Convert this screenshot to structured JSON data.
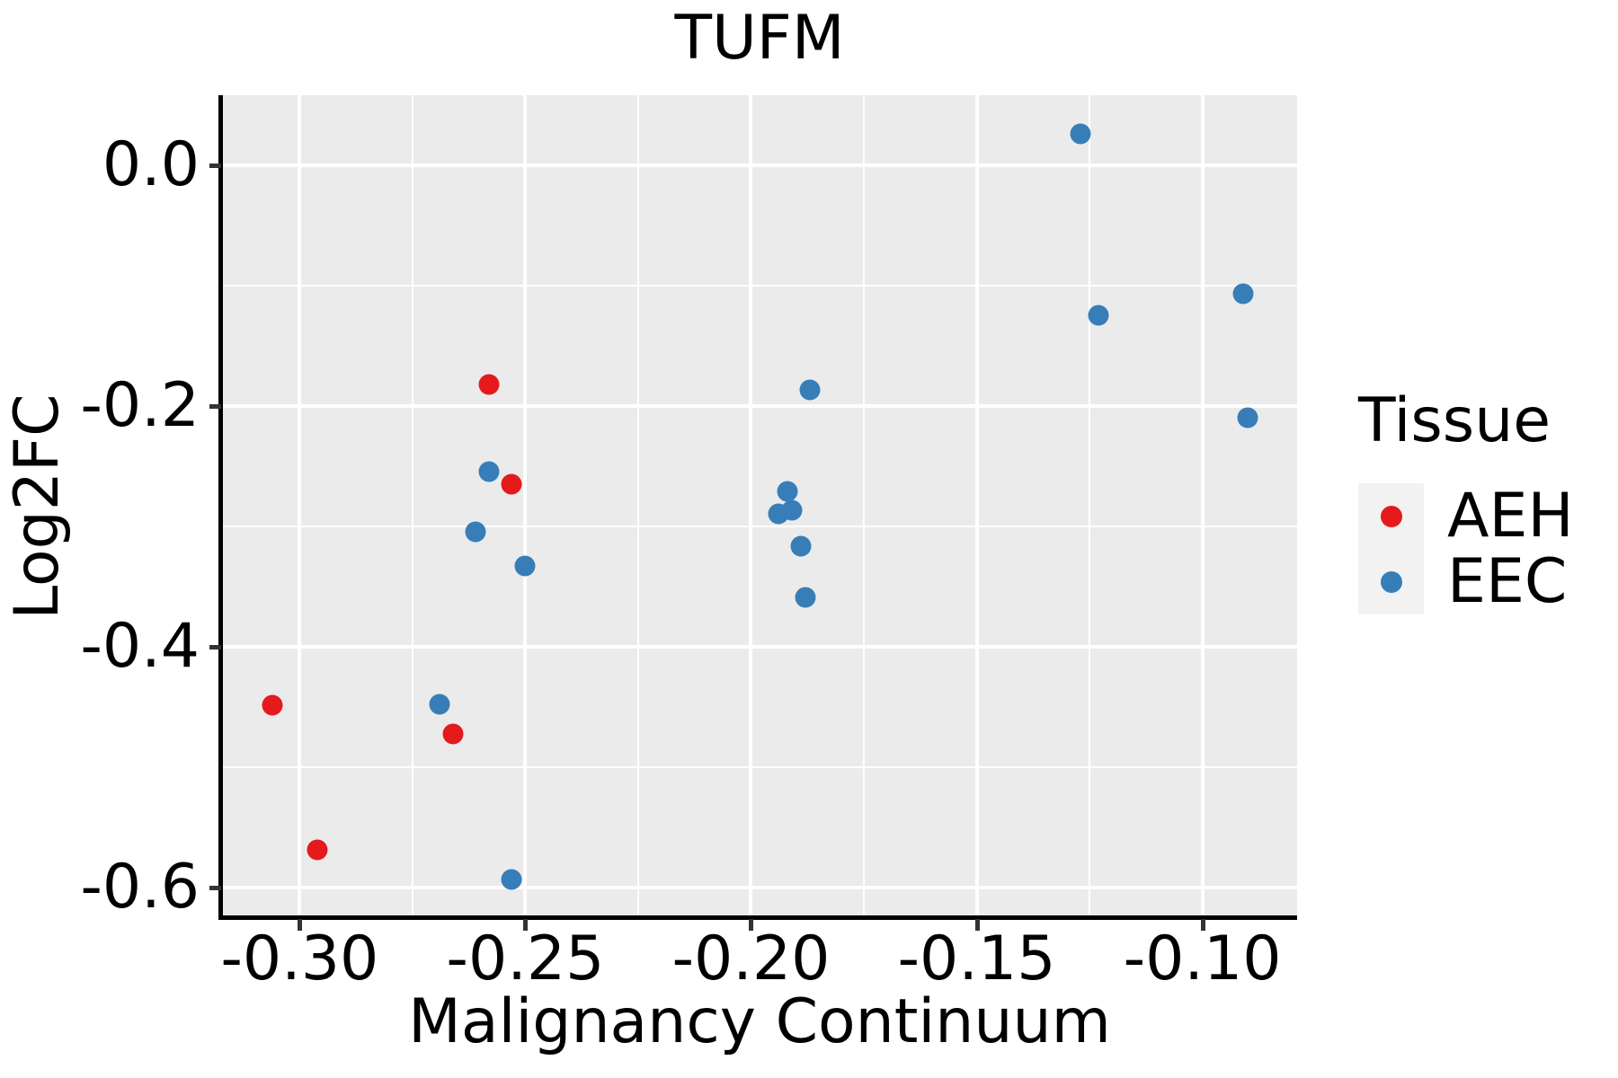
{
  "title": "TUFM",
  "chart_data": {
    "type": "scatter",
    "title": "TUFM",
    "xlabel": "Malignancy Continuum",
    "ylabel": "Log2FC",
    "xlim": [
      -0.317,
      -0.079
    ],
    "ylim": [
      -0.625,
      0.058
    ],
    "grid": true,
    "legend_position": "right",
    "x_ticks": [
      -0.3,
      -0.25,
      -0.2,
      -0.15,
      -0.1
    ],
    "x_tick_labels": [
      "-0.30",
      "-0.25",
      "-0.20",
      "-0.15",
      "-0.10"
    ],
    "x_minor_ticks": [
      -0.275,
      -0.225,
      -0.175,
      -0.125
    ],
    "y_ticks": [
      0.0,
      -0.2,
      -0.4,
      -0.6
    ],
    "y_tick_labels": [
      "0.0",
      "-0.2",
      "-0.4",
      "-0.6"
    ],
    "y_minor_ticks": [
      -0.1,
      -0.3,
      -0.5
    ],
    "series": [
      {
        "name": "EEC",
        "color": "#377EB8",
        "points": [
          [
            -0.269,
            -0.448
          ],
          [
            -0.261,
            -0.305
          ],
          [
            -0.258,
            -0.255
          ],
          [
            -0.25,
            -0.333
          ],
          [
            -0.253,
            -0.594
          ],
          [
            -0.187,
            -0.187
          ],
          [
            -0.192,
            -0.271
          ],
          [
            -0.194,
            -0.29
          ],
          [
            -0.191,
            -0.287
          ],
          [
            -0.189,
            -0.317
          ],
          [
            -0.188,
            -0.359
          ],
          [
            -0.127,
            0.026
          ],
          [
            -0.123,
            -0.125
          ],
          [
            -0.091,
            -0.107
          ],
          [
            -0.09,
            -0.21
          ]
        ]
      },
      {
        "name": "AEH",
        "color": "#E41A1C",
        "points": [
          [
            -0.306,
            -0.449
          ],
          [
            -0.296,
            -0.569
          ],
          [
            -0.266,
            -0.473
          ],
          [
            -0.258,
            -0.182
          ],
          [
            -0.253,
            -0.265
          ]
        ]
      }
    ]
  },
  "legend": {
    "title": "Tissue",
    "entries": [
      {
        "label": "AEH",
        "color": "#E41A1C"
      },
      {
        "label": "EEC",
        "color": "#377EB8"
      }
    ]
  },
  "colors": {
    "panel_bg": "#EBEBEB",
    "grid": "#FFFFFF",
    "axis_line": "#000000",
    "tick": "#333333",
    "text": "#000000",
    "legend_key_bg": "#F2F2F2",
    "aeh": "#E41A1C",
    "eec": "#377EB8"
  }
}
